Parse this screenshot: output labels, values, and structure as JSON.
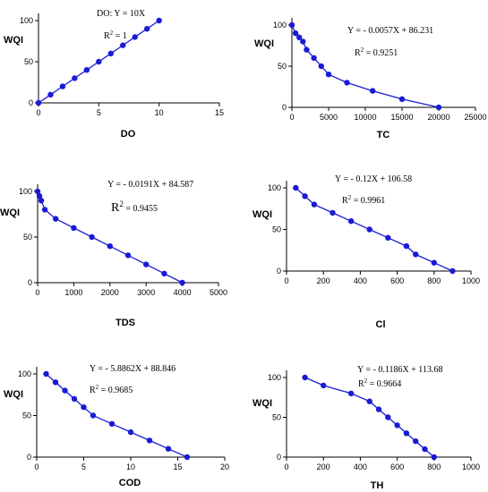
{
  "chart_data": [
    {
      "type": "line",
      "xlabel": "DO",
      "ylabel": "WQI",
      "xlim": [
        0,
        15
      ],
      "ylim": [
        0,
        100
      ],
      "xticks": [
        0,
        5,
        10,
        15
      ],
      "yticks": [
        0,
        50,
        100
      ],
      "x": [
        0,
        1,
        2,
        3,
        4,
        5,
        6,
        7,
        8,
        9,
        10
      ],
      "y": [
        0,
        10,
        20,
        30,
        40,
        50,
        60,
        70,
        80,
        90,
        100
      ],
      "equation": "DO: Y = 10X",
      "r2_label": "R",
      "r2_value": " = 1",
      "color": "#1a1ad6"
    },
    {
      "type": "line",
      "xlabel": "TC",
      "ylabel": "WQI",
      "xlim": [
        0,
        25000
      ],
      "ylim": [
        0,
        100
      ],
      "xticks": [
        0,
        5000,
        10000,
        15000,
        20000,
        25000
      ],
      "yticks": [
        0,
        50,
        100
      ],
      "x": [
        0,
        500,
        1000,
        1500,
        2000,
        3000,
        4000,
        5000,
        7500,
        11000,
        15000,
        20000
      ],
      "y": [
        100,
        90,
        85,
        80,
        70,
        60,
        50,
        40,
        30,
        20,
        10,
        0
      ],
      "equation": "Y = - 0.0057X + 86.231",
      "r2_label": "R",
      "r2_value": " = 0.9251",
      "color": "#1a1ad6"
    },
    {
      "type": "line",
      "xlabel": "TDS",
      "ylabel": "WQI",
      "xlim": [
        0,
        5000
      ],
      "ylim": [
        0,
        100
      ],
      "xticks": [
        0,
        1000,
        2000,
        3000,
        4000,
        5000
      ],
      "yticks": [
        0,
        50,
        100
      ],
      "x": [
        0,
        50,
        100,
        200,
        500,
        1000,
        1500,
        2000,
        2500,
        3000,
        3500,
        4000
      ],
      "y": [
        100,
        95,
        90,
        80,
        70,
        60,
        50,
        40,
        30,
        20,
        10,
        0
      ],
      "equation": "Y = - 0.0191X + 84.587",
      "r2_label": "R",
      "r2_value": " = 0.9455",
      "color": "#1a1ad6"
    },
    {
      "type": "line",
      "xlabel": "Cl",
      "ylabel": "WQI",
      "xlim": [
        0,
        1000
      ],
      "ylim": [
        0,
        100
      ],
      "xticks": [
        0,
        200,
        400,
        600,
        800,
        1000
      ],
      "yticks": [
        0,
        50,
        100
      ],
      "x": [
        50,
        100,
        150,
        250,
        350,
        450,
        550,
        650,
        700,
        800,
        900
      ],
      "y": [
        100,
        90,
        80,
        70,
        60,
        50,
        40,
        30,
        20,
        10,
        0
      ],
      "equation": "Y = - 0.12X + 106.58",
      "r2_label": "R",
      "r2_value": " = 0.9961",
      "color": "#1a1ad6"
    },
    {
      "type": "line",
      "xlabel": "COD",
      "ylabel": "WQI",
      "xlim": [
        0,
        20
      ],
      "ylim": [
        0,
        100
      ],
      "xticks": [
        0,
        5,
        10,
        15,
        20
      ],
      "yticks": [
        0,
        50,
        100
      ],
      "x": [
        1,
        2,
        3,
        4,
        5,
        6,
        8,
        10,
        12,
        14,
        16
      ],
      "y": [
        100,
        90,
        80,
        70,
        60,
        50,
        40,
        30,
        20,
        10,
        0
      ],
      "equation": "Y = - 5.8862X + 88.846",
      "r2_label": "R",
      "r2_value": " = 0.9685",
      "color": "#1a1ad6"
    },
    {
      "type": "line",
      "xlabel": "TH",
      "ylabel": "WQI",
      "xlim": [
        0,
        1000
      ],
      "ylim": [
        0,
        100
      ],
      "xticks": [
        0,
        200,
        400,
        600,
        800,
        1000
      ],
      "yticks": [
        0,
        50,
        100
      ],
      "x": [
        100,
        200,
        350,
        450,
        500,
        550,
        600,
        650,
        700,
        750,
        800
      ],
      "y": [
        100,
        90,
        80,
        70,
        60,
        50,
        40,
        30,
        20,
        10,
        0
      ],
      "equation": "Y = - 0.1186X + 113.68",
      "r2_label": "R",
      "r2_value": " = 0.9664",
      "color": "#1a1ad6"
    }
  ]
}
